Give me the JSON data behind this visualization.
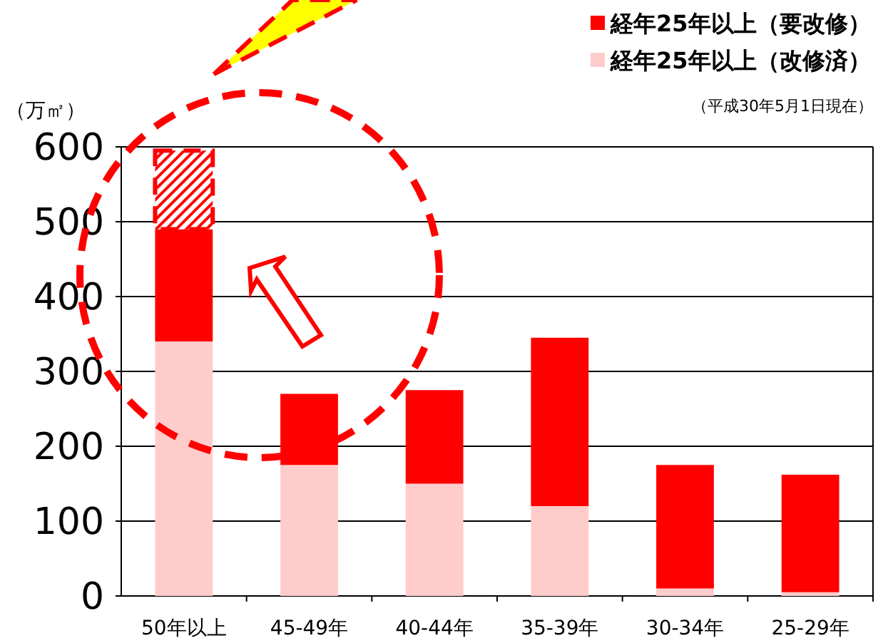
{
  "chart_data": {
    "type": "bar",
    "stacked": true,
    "ylabel": "（万㎡）",
    "categories": [
      "50年以上",
      "45-49年",
      "40-44年",
      "35-39年",
      "30-34年",
      "25-29年"
    ],
    "series": [
      {
        "name": "経年25年以上（改修済）",
        "color": "#ffcccc",
        "values": [
          340,
          175,
          150,
          120,
          10,
          5
        ]
      },
      {
        "name": "経年25年以上（要改修）",
        "color": "#ff0000",
        "values": [
          150,
          95,
          125,
          225,
          165,
          157
        ]
      },
      {
        "color": "#ff0000",
        "values": [
          105,
          null,
          null,
          null,
          null,
          null
        ]
      }
    ],
    "ylim": [
      0,
      600
    ],
    "yticks": [
      0,
      100,
      200,
      300,
      400,
      500,
      600
    ],
    "grid": "y",
    "legend": "top right",
    "annotations": [
      "（平成30年5月1日現在）"
    ]
  }
}
